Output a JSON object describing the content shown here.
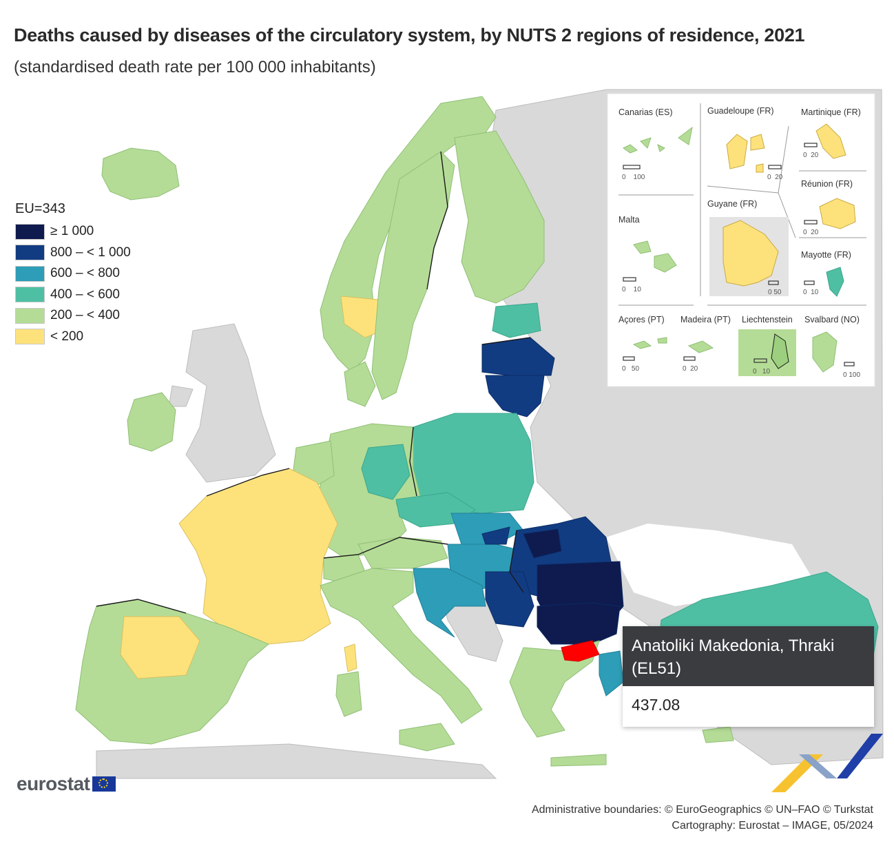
{
  "title": "Deaths caused by diseases of the circulatory system, by NUTS 2 regions of residence, 2021",
  "subtitle": "(standardised death rate per 100 000 inhabitants)",
  "legend": {
    "title": "EU=343",
    "classes": [
      {
        "label": "≥ 1 000",
        "color": "#0f1a4e"
      },
      {
        "label": "800 – < 1 000",
        "color": "#123c82"
      },
      {
        "label": "600 – < 800",
        "color": "#2e9db7"
      },
      {
        "label": "400 – < 600",
        "color": "#4fbfa4"
      },
      {
        "label": "200 – < 400",
        "color": "#b4dc96"
      },
      {
        "label": "< 200",
        "color": "#fde27c"
      }
    ]
  },
  "colors": {
    "non_eu": "#d9d9d9",
    "sea": "#ffffff",
    "highlight": "#ff0000",
    "tooltip_header": "#3a3c40"
  },
  "insets": [
    {
      "name": "Canarias (ES)",
      "scale": "0    100"
    },
    {
      "name": "Guadeloupe (FR)",
      "scale": "0  20"
    },
    {
      "name": "Martinique (FR)",
      "scale": "0  20"
    },
    {
      "name": "Réunion (FR)",
      "scale": "0  20"
    },
    {
      "name": "Guyane (FR)",
      "scale": "0 50"
    },
    {
      "name": "Malta",
      "scale": "0    10"
    },
    {
      "name": "Mayotte (FR)",
      "scale": "0  10"
    },
    {
      "name": "Açores (PT)",
      "scale": "0   50"
    },
    {
      "name": "Madeira (PT)",
      "scale": "0  20"
    },
    {
      "name": "Liechtenstein",
      "scale": "0   10"
    },
    {
      "name": "Svalbard (NO)",
      "scale": "0 100"
    }
  ],
  "tooltip": {
    "region": "Anatoliki Makedonia, Thraki (EL51)",
    "value": "437.08"
  },
  "logo": {
    "text": "eurostat"
  },
  "credits": {
    "line1": "Administrative boundaries: © EuroGeographics © UN–FAO © Turkstat",
    "line2": "Cartography: Eurostat – IMAGE, 05/2024"
  }
}
